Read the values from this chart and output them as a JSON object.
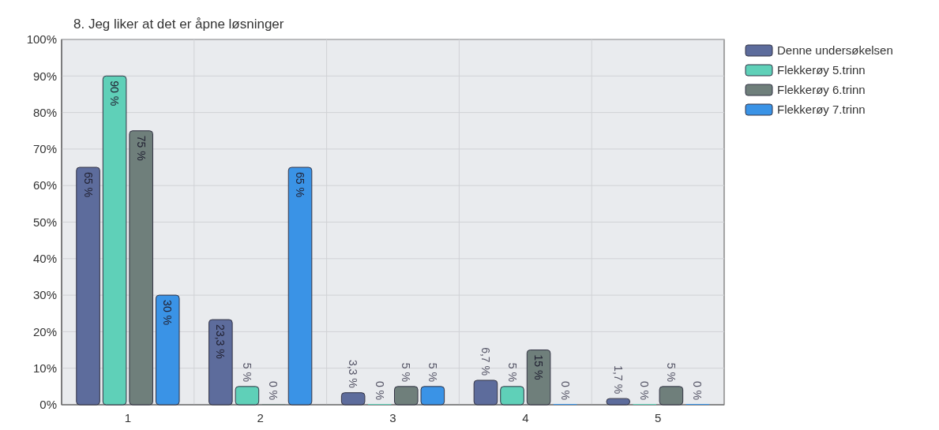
{
  "chart_data": {
    "type": "bar",
    "title": "8. Jeg liker at det er åpne løsninger",
    "categories": [
      "1",
      "2",
      "3",
      "4",
      "5"
    ],
    "series": [
      {
        "name": "Denne undersøkelsen",
        "color": "#5d6c9c",
        "values": [
          65,
          23.3,
          3.3,
          6.7,
          1.7
        ],
        "value_labels": [
          "65 %",
          "23,3 %",
          "3,3 %",
          "6,7 %",
          "1,7 %"
        ]
      },
      {
        "name": "Flekkerøy 5.trinn",
        "color": "#5fd0b8",
        "values": [
          90,
          5,
          0,
          5,
          0
        ],
        "value_labels": [
          "90 %",
          "5 %",
          "0 %",
          "5 %",
          "0 %"
        ]
      },
      {
        "name": "Flekkerøy 6.trinn",
        "color": "#6f7f7b",
        "values": [
          75,
          0,
          5,
          15,
          5
        ],
        "value_labels": [
          "75 %",
          "0 %",
          "5 %",
          "15 %",
          "5 %"
        ]
      },
      {
        "name": "Flekkerøy 7.trinn",
        "color": "#3a93e6",
        "values": [
          30,
          65,
          5,
          0,
          0
        ],
        "value_labels": [
          "30 %",
          "65 %",
          "5 %",
          "0 %",
          "0 %"
        ]
      }
    ],
    "ylim": [
      0,
      100
    ],
    "yticks": [
      {
        "value": 0,
        "label": "0%"
      },
      {
        "value": 10,
        "label": "10%"
      },
      {
        "value": 20,
        "label": "20%"
      },
      {
        "value": 30,
        "label": "30%"
      },
      {
        "value": 40,
        "label": "40%"
      },
      {
        "value": 50,
        "label": "50%"
      },
      {
        "value": 60,
        "label": "60%"
      },
      {
        "value": 70,
        "label": "70%"
      },
      {
        "value": 80,
        "label": "80%"
      },
      {
        "value": 90,
        "label": "90%"
      },
      {
        "value": 100,
        "label": "100%"
      }
    ],
    "grid": true,
    "legend": "right"
  }
}
